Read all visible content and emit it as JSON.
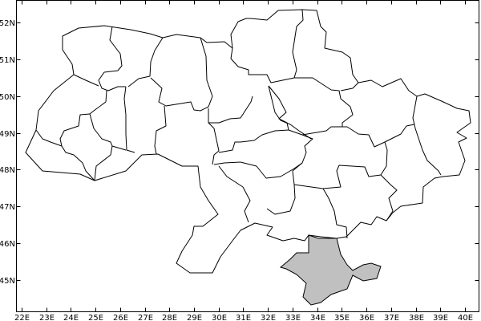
{
  "map": {
    "region_highlighted": "Crimea",
    "colors": {
      "highlight_fill": "#c0c0c0",
      "border": "#000000",
      "background": "#ffffff"
    },
    "lon_ticks": [
      "22E",
      "23E",
      "24E",
      "25E",
      "26E",
      "27E",
      "28E",
      "29E",
      "30E",
      "31E",
      "32E",
      "33E",
      "34E",
      "35E",
      "36E",
      "37E",
      "38E",
      "39E",
      "40E"
    ],
    "lat_ticks": [
      "52N",
      "51N",
      "50N",
      "49N",
      "48N",
      "47N",
      "46N",
      "45N"
    ],
    "lon_values": [
      22,
      23,
      24,
      25,
      26,
      27,
      28,
      29,
      30,
      31,
      32,
      33,
      34,
      35,
      36,
      37,
      38,
      39,
      40
    ],
    "lat_values": [
      52,
      51,
      50,
      49,
      48,
      47,
      46,
      45
    ]
  }
}
